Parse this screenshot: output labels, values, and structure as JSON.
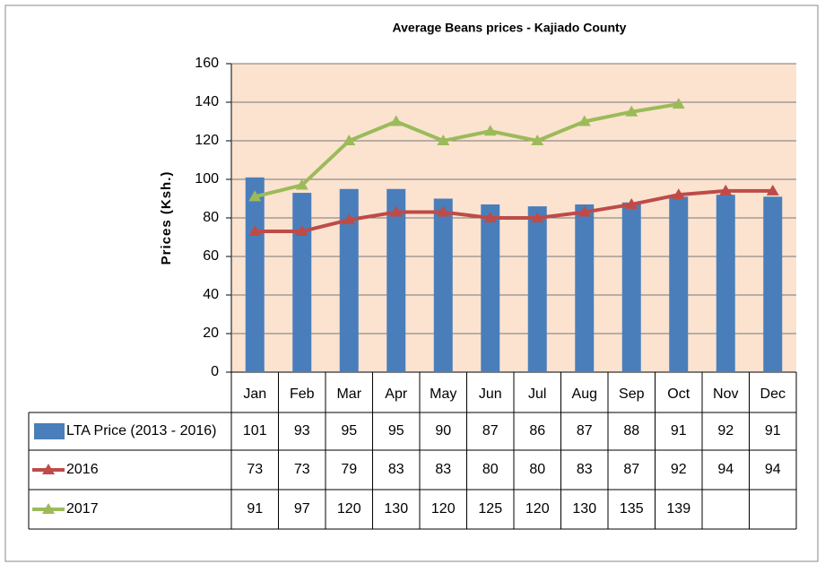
{
  "chart_data": {
    "type": "bar",
    "title": "Average Beans prices  - Kajiado County",
    "y_label": "Prices (Ksh.)",
    "categories": [
      "Jan",
      "Feb",
      "Mar",
      "Apr",
      "May",
      "Jun",
      "Jul",
      "Aug",
      "Sep",
      "Oct",
      "Nov",
      "Dec"
    ],
    "series": [
      {
        "name": "LTA Price (2013 - 2016)",
        "type": "bar",
        "color": "#4a7ebb",
        "values": [
          101,
          93,
          95,
          95,
          90,
          87,
          86,
          87,
          88,
          91,
          92,
          91
        ]
      },
      {
        "name": "2016",
        "type": "line",
        "color": "#be4b48",
        "values": [
          73,
          73,
          79,
          83,
          83,
          80,
          80,
          83,
          87,
          92,
          94,
          94
        ]
      },
      {
        "name": "2017",
        "type": "line",
        "color": "#9bbb59",
        "values": [
          91,
          97,
          120,
          130,
          120,
          125,
          120,
          130,
          135,
          139,
          null,
          null
        ]
      }
    ],
    "ylim": [
      0,
      160
    ],
    "yticks": [
      0,
      20,
      40,
      60,
      80,
      100,
      120,
      140,
      160
    ],
    "grid": true,
    "data_table": true
  }
}
